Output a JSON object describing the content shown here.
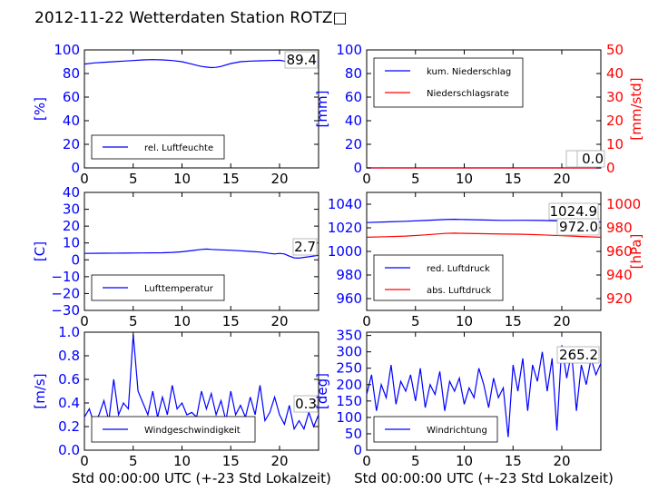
{
  "page": {
    "title": "2012-11-22 Wetterdaten Station ROTZ□"
  },
  "colors": {
    "blue": "#0000ff",
    "red": "#ff0000",
    "axis": "#000000"
  },
  "chart_data": [
    {
      "id": "humidity",
      "type": "line",
      "xlim": [
        0,
        24
      ],
      "ylim": [
        0,
        100
      ],
      "xticks": [
        "0",
        "5",
        "10",
        "15",
        "20"
      ],
      "yticks": [
        "0",
        "20",
        "40",
        "60",
        "80",
        "100"
      ],
      "ylabel": "[%]",
      "xlabel": "",
      "legend_position": "lower-left",
      "value_label": "89.4",
      "series": [
        {
          "name": "rel. Luftfeuchte",
          "color": "#0000ff",
          "x": [
            0,
            1,
            2,
            3,
            4,
            5,
            6,
            7,
            8,
            9,
            10,
            11,
            11.5,
            12,
            12.5,
            13,
            13.5,
            14,
            15,
            16,
            17,
            18,
            19,
            20,
            20.5,
            21,
            22,
            23,
            24
          ],
          "y": [
            88,
            89,
            89.5,
            90,
            90.5,
            91,
            91.5,
            91.8,
            91.5,
            91,
            90,
            88,
            87,
            86,
            85.5,
            85,
            85.2,
            86,
            88.5,
            90,
            90.5,
            90.8,
            91,
            91.2,
            90.5,
            89,
            90,
            89.8,
            89.4
          ]
        }
      ]
    },
    {
      "id": "precip",
      "type": "line",
      "xlim": [
        0,
        24
      ],
      "ylim": [
        0,
        100
      ],
      "ylim_right": [
        0,
        50
      ],
      "xticks": [
        "0",
        "5",
        "10",
        "15",
        "20"
      ],
      "yticks": [
        "0",
        "20",
        "40",
        "60",
        "80",
        "100"
      ],
      "yticks_right": [
        "0",
        "10",
        "20",
        "30",
        "40",
        "50"
      ],
      "ylabel": "[mm]",
      "ylabel_right": "[mm/std]",
      "xlabel": "",
      "legend_position": "upper-left",
      "value_label": "0.0",
      "value_label_2": "0.0",
      "series": [
        {
          "name": "kum. Niederschlag",
          "color": "#0000ff",
          "axis": "left",
          "x": [
            0,
            24
          ],
          "y": [
            0,
            0
          ]
        },
        {
          "name": "Niederschlagsrate",
          "color": "#ff0000",
          "axis": "right",
          "x": [
            0,
            24
          ],
          "y": [
            0,
            0
          ]
        }
      ]
    },
    {
      "id": "temperature",
      "type": "line",
      "xlim": [
        0,
        24
      ],
      "ylim": [
        -30,
        40
      ],
      "xticks": [
        "0",
        "5",
        "10",
        "15",
        "20"
      ],
      "yticks": [
        "−30",
        "−20",
        "−10",
        "0",
        "10",
        "20",
        "30",
        "40"
      ],
      "ylabel": "[C]",
      "xlabel": "",
      "legend_position": "lower-left",
      "value_label": "2.7",
      "series": [
        {
          "name": "Lufttemperatur",
          "color": "#0000ff",
          "x": [
            0,
            2,
            4,
            6,
            8,
            9,
            10,
            11,
            12,
            12.5,
            13,
            14,
            15,
            16,
            17,
            18,
            19,
            19.5,
            20,
            20.5,
            21,
            21.5,
            22,
            23,
            24
          ],
          "y": [
            3.8,
            3.9,
            4,
            4.1,
            4.2,
            4.4,
            4.8,
            5.5,
            6.2,
            6.4,
            6.2,
            5.9,
            5.7,
            5.4,
            5.0,
            4.6,
            3.8,
            3.5,
            3.8,
            3.5,
            2.2,
            1.2,
            1.0,
            1.8,
            2.7
          ]
        }
      ]
    },
    {
      "id": "pressure",
      "type": "line",
      "xlim": [
        0,
        24
      ],
      "ylim": [
        950,
        1050
      ],
      "ylim_right": [
        910,
        1010
      ],
      "xticks": [
        "0",
        "5",
        "10",
        "15",
        "20"
      ],
      "yticks": [
        "960",
        "980",
        "1000",
        "1020",
        "1040"
      ],
      "yticks_right": [
        "920",
        "940",
        "960",
        "980",
        "1000"
      ],
      "ylabel": "",
      "ylabel_right": "[hPa]",
      "xlabel": "",
      "legend_position": "lower-left",
      "value_label": "1024.9",
      "value_label_2": "972.0",
      "series": [
        {
          "name": "red. Luftdruck",
          "color": "#0000ff",
          "axis": "left",
          "x": [
            0,
            2,
            4,
            6,
            8,
            9,
            10,
            12,
            14,
            16,
            18,
            20,
            22,
            24
          ],
          "y": [
            1024.5,
            1025,
            1025.5,
            1026.2,
            1027,
            1027.2,
            1027,
            1026.6,
            1026.3,
            1026.4,
            1026.2,
            1025.8,
            1025.3,
            1024.9
          ]
        },
        {
          "name": "abs. Luftdruck",
          "color": "#ff0000",
          "axis": "right",
          "x": [
            0,
            2,
            4,
            6,
            8,
            9,
            10,
            12,
            14,
            16,
            18,
            20,
            22,
            24
          ],
          "y": [
            972.0,
            972.5,
            973.0,
            974.0,
            975.2,
            975.5,
            975.3,
            975.0,
            974.7,
            974.5,
            974.0,
            973.3,
            972.6,
            972.0
          ]
        }
      ]
    },
    {
      "id": "windspeed",
      "type": "line",
      "xlim": [
        0,
        24
      ],
      "ylim": [
        0,
        1.0
      ],
      "xticks": [
        "0",
        "5",
        "10",
        "15",
        "20"
      ],
      "yticks": [
        "0.0",
        "0.2",
        "0.4",
        "0.6",
        "0.8",
        "1.0"
      ],
      "ylabel": "[m/s]",
      "xlabel": "Std 00:00:00 UTC (+-23 Std Lokalzeit)",
      "legend_position": "lower-left",
      "value_label": "0.3",
      "series": [
        {
          "name": "Windgeschwindigkeit",
          "color": "#0000ff",
          "x": [
            0,
            0.5,
            1,
            1.5,
            2,
            2.5,
            3,
            3.5,
            4,
            4.5,
            5,
            5.5,
            6,
            6.5,
            7,
            7.5,
            8,
            8.5,
            9,
            9.5,
            10,
            10.5,
            11,
            11.5,
            12,
            12.5,
            13,
            13.5,
            14,
            14.5,
            15,
            15.5,
            16,
            16.5,
            17,
            17.5,
            18,
            18.5,
            19,
            19.5,
            20,
            20.5,
            21,
            21.5,
            22,
            22.5,
            23,
            23.5,
            24
          ],
          "y": [
            0.28,
            0.35,
            0.22,
            0.3,
            0.42,
            0.25,
            0.6,
            0.3,
            0.4,
            0.35,
            0.98,
            0.5,
            0.4,
            0.3,
            0.5,
            0.28,
            0.45,
            0.3,
            0.55,
            0.35,
            0.4,
            0.3,
            0.32,
            0.28,
            0.5,
            0.35,
            0.48,
            0.3,
            0.42,
            0.25,
            0.5,
            0.3,
            0.38,
            0.28,
            0.45,
            0.3,
            0.55,
            0.25,
            0.32,
            0.45,
            0.3,
            0.22,
            0.38,
            0.18,
            0.25,
            0.18,
            0.32,
            0.2,
            0.3
          ]
        }
      ]
    },
    {
      "id": "winddir",
      "type": "line",
      "xlim": [
        0,
        24
      ],
      "ylim": [
        0,
        360
      ],
      "xticks": [
        "0",
        "5",
        "10",
        "15",
        "20"
      ],
      "yticks": [
        "0",
        "50",
        "100",
        "150",
        "200",
        "250",
        "300",
        "350"
      ],
      "ylabel": "[deg]",
      "xlabel": "Std 00:00:00 UTC (+-23 Std Lokalzeit)",
      "legend_position": "lower-left",
      "value_label": "265.2",
      "series": [
        {
          "name": "Windrichtung",
          "color": "#0000ff",
          "x": [
            0,
            0.5,
            1,
            1.5,
            2,
            2.5,
            3,
            3.5,
            4,
            4.5,
            5,
            5.5,
            6,
            6.5,
            7,
            7.5,
            8,
            8.5,
            9,
            9.5,
            10,
            10.5,
            11,
            11.5,
            12,
            12.5,
            13,
            13.5,
            14,
            14.5,
            15,
            15.5,
            16,
            16.5,
            17,
            17.5,
            18,
            18.5,
            19,
            19.5,
            20,
            20.5,
            21,
            21.5,
            22,
            22.5,
            23,
            23.5,
            24
          ],
          "y": [
            170,
            230,
            120,
            200,
            160,
            260,
            140,
            210,
            180,
            230,
            150,
            250,
            130,
            200,
            170,
            240,
            120,
            210,
            180,
            220,
            140,
            190,
            160,
            250,
            200,
            130,
            220,
            160,
            190,
            40,
            260,
            180,
            280,
            120,
            260,
            210,
            300,
            180,
            280,
            60,
            320,
            220,
            300,
            120,
            260,
            200,
            280,
            230,
            265
          ]
        }
      ]
    }
  ]
}
